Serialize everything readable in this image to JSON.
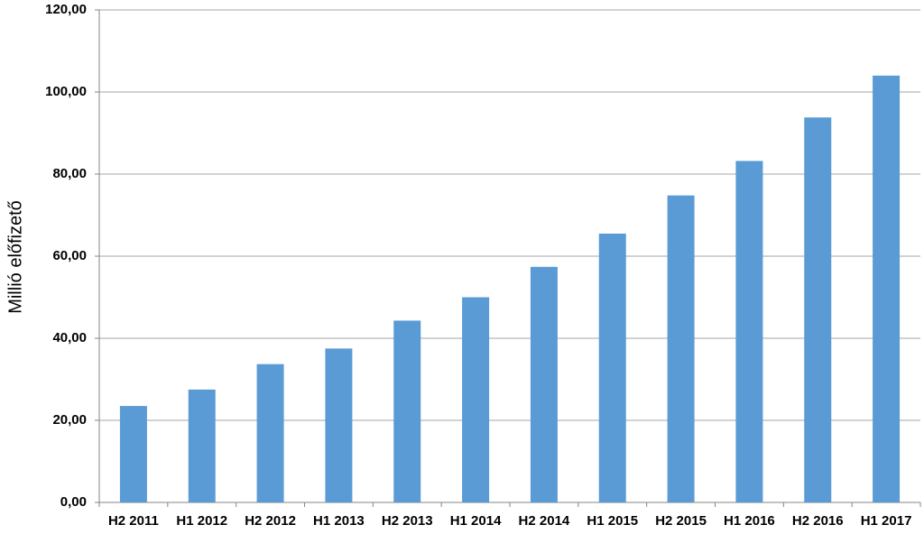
{
  "chart_data": {
    "type": "bar",
    "y_axis_label": "Millió előfizető",
    "categories": [
      "H2 2011",
      "H1 2012",
      "H2 2012",
      "H1 2013",
      "H2 2013",
      "H1 2014",
      "H2 2014",
      "H1 2015",
      "H2 2015",
      "H1 2016",
      "H2 2016",
      "H1 2017"
    ],
    "values": [
      23.5,
      27.5,
      33.7,
      37.5,
      44.3,
      50,
      57.4,
      65.5,
      74.8,
      83.2,
      93.8,
      104
    ],
    "color": "#5b9bd5",
    "ylim": [
      0,
      120
    ],
    "yticks": [
      {
        "value": 0,
        "label": "0,00"
      },
      {
        "value": 20,
        "label": "20,00"
      },
      {
        "value": 40,
        "label": "40,00"
      },
      {
        "value": 60,
        "label": "60,00"
      },
      {
        "value": 80,
        "label": "80,00"
      },
      {
        "value": 100,
        "label": "100,00"
      },
      {
        "value": 120,
        "label": "120,00"
      }
    ],
    "grid": true
  }
}
